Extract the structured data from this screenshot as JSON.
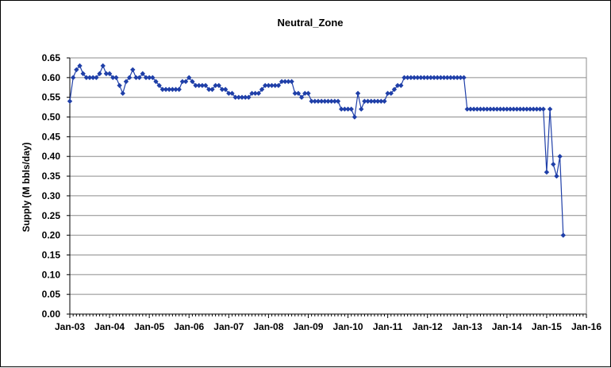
{
  "chart_data": {
    "type": "line",
    "title": "Neutral_Zone",
    "xlabel": "",
    "ylabel": "Supply (M bbls/day)",
    "x_ticks": [
      "Jan-03",
      "Jan-04",
      "Jan-05",
      "Jan-06",
      "Jan-07",
      "Jan-08",
      "Jan-09",
      "Jan-10",
      "Jan-11",
      "Jan-12",
      "Jan-13",
      "Jan-14",
      "Jan-15",
      "Jan-16"
    ],
    "y_ticks": [
      "0.00",
      "0.05",
      "0.10",
      "0.15",
      "0.20",
      "0.25",
      "0.30",
      "0.35",
      "0.40",
      "0.45",
      "0.50",
      "0.55",
      "0.60",
      "0.65"
    ],
    "ylim": [
      0,
      0.65
    ],
    "xlim_months": [
      0,
      156
    ],
    "grid": "horizontal",
    "series_color": "#1f3fa8",
    "marker": "diamond",
    "series": [
      {
        "name": "",
        "start": "Jan-03",
        "frequency": "monthly",
        "values": [
          0.54,
          0.6,
          0.62,
          0.63,
          0.61,
          0.6,
          0.6,
          0.6,
          0.6,
          0.61,
          0.63,
          0.61,
          0.61,
          0.6,
          0.6,
          0.58,
          0.56,
          0.59,
          0.6,
          0.62,
          0.6,
          0.6,
          0.61,
          0.6,
          0.6,
          0.6,
          0.59,
          0.58,
          0.57,
          0.57,
          0.57,
          0.57,
          0.57,
          0.57,
          0.59,
          0.59,
          0.6,
          0.59,
          0.58,
          0.58,
          0.58,
          0.58,
          0.57,
          0.57,
          0.58,
          0.58,
          0.57,
          0.57,
          0.56,
          0.56,
          0.55,
          0.55,
          0.55,
          0.55,
          0.55,
          0.56,
          0.56,
          0.56,
          0.57,
          0.58,
          0.58,
          0.58,
          0.58,
          0.58,
          0.59,
          0.59,
          0.59,
          0.59,
          0.56,
          0.56,
          0.55,
          0.56,
          0.56,
          0.54,
          0.54,
          0.54,
          0.54,
          0.54,
          0.54,
          0.54,
          0.54,
          0.54,
          0.52,
          0.52,
          0.52,
          0.52,
          0.5,
          0.56,
          0.52,
          0.54,
          0.54,
          0.54,
          0.54,
          0.54,
          0.54,
          0.54,
          0.56,
          0.56,
          0.57,
          0.58,
          0.58,
          0.6,
          0.6,
          0.6,
          0.6,
          0.6,
          0.6,
          0.6,
          0.6,
          0.6,
          0.6,
          0.6,
          0.6,
          0.6,
          0.6,
          0.6,
          0.6,
          0.6,
          0.6,
          0.6,
          0.52,
          0.52,
          0.52,
          0.52,
          0.52,
          0.52,
          0.52,
          0.52,
          0.52,
          0.52,
          0.52,
          0.52,
          0.52,
          0.52,
          0.52,
          0.52,
          0.52,
          0.52,
          0.52,
          0.52,
          0.52,
          0.52,
          0.52,
          0.52,
          0.36,
          0.52,
          0.38,
          0.35,
          0.4,
          0.2
        ]
      }
    ]
  }
}
